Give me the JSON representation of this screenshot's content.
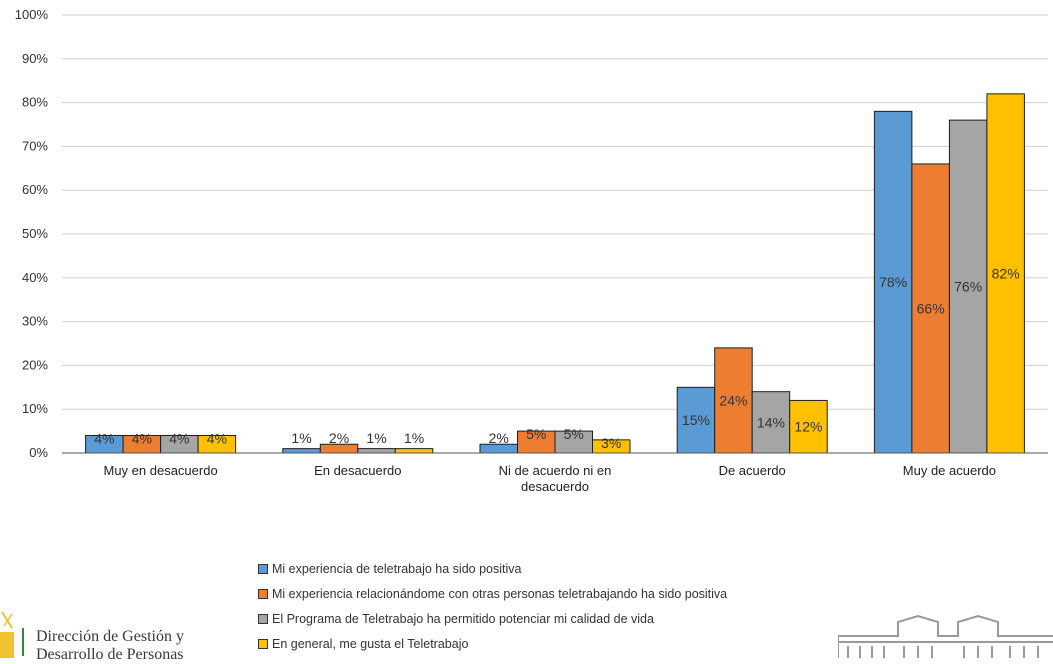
{
  "chart_data": {
    "type": "bar",
    "categories": [
      "Muy en desacuerdo",
      "En desacuerdo",
      "Ni de acuerdo ni en desacuerdo",
      "De acuerdo",
      "Muy de acuerdo"
    ],
    "category_lines": [
      [
        "Muy en desacuerdo"
      ],
      [
        "En desacuerdo"
      ],
      [
        "Ni de acuerdo ni en",
        "desacuerdo"
      ],
      [
        "De acuerdo"
      ],
      [
        "Muy de acuerdo"
      ]
    ],
    "series": [
      {
        "name": "Mi experiencia de teletrabajo ha sido positiva",
        "color": "#5b9bd5",
        "values": [
          4,
          1,
          2,
          15,
          78
        ],
        "labels": [
          "4%",
          "1%",
          "2%",
          "15%",
          "78%"
        ]
      },
      {
        "name": "Mi experiencia relacionándome con otras personas teletrabajando ha sido positiva",
        "color": "#ed7d31",
        "values": [
          4,
          2,
          5,
          24,
          66
        ],
        "labels": [
          "4%",
          "2%",
          "5%",
          "24%",
          "66%"
        ]
      },
      {
        "name": "El Programa de Teletrabajo ha permitido potenciar mi calidad de vida",
        "color": "#a5a5a5",
        "values": [
          4,
          1,
          5,
          14,
          76
        ],
        "labels": [
          "4%",
          "1%",
          "5%",
          "14%",
          "76%"
        ]
      },
      {
        "name": "En general, me gusta el Teletrabajo",
        "color": "#ffc000",
        "values": [
          4,
          1,
          3,
          12,
          82
        ],
        "labels": [
          "4%",
          "1%",
          "3%",
          "12%",
          "82%"
        ]
      }
    ],
    "ylim": [
      0,
      100
    ],
    "yticks": [
      "0%",
      "10%",
      "20%",
      "30%",
      "40%",
      "50%",
      "60%",
      "70%",
      "80%",
      "90%",
      "100%"
    ],
    "grid": true,
    "legend_position": "bottom"
  },
  "logo": {
    "line1": "Dirección de Gestión y",
    "line2": "Desarrollo de Personas"
  }
}
